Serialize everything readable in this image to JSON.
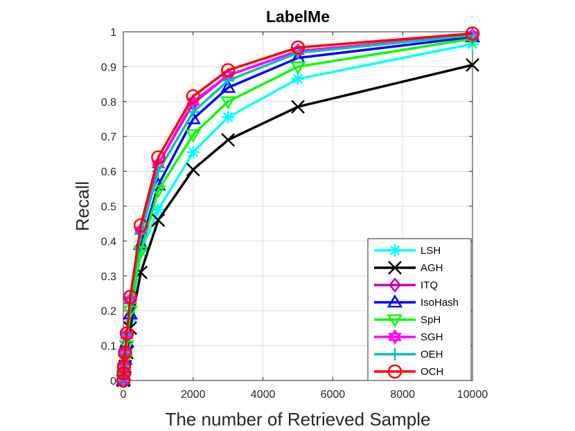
{
  "chart_data": {
    "type": "line",
    "title": "LabelMe",
    "xlabel": "The number of Retrieved Sample",
    "ylabel": "Recall",
    "xlim": [
      0,
      10000
    ],
    "ylim": [
      0,
      1
    ],
    "xticks": [
      0,
      2000,
      4000,
      6000,
      8000,
      10000
    ],
    "xtick_labels": [
      "0",
      "2000",
      "4000",
      "6000",
      "8000",
      "10000"
    ],
    "yticks": [
      0,
      0.1,
      0.2,
      0.3,
      0.4,
      0.5,
      0.6,
      0.7,
      0.8,
      0.9,
      1
    ],
    "ytick_labels": [
      "0",
      "0.1",
      "0.2",
      "0.3",
      "0.4",
      "0.5",
      "0.6",
      "0.7",
      "0.8",
      "0.9",
      "1"
    ],
    "grid": true,
    "legend_position": "bottom-right",
    "x": [
      1,
      10,
      20,
      50,
      100,
      200,
      500,
      1000,
      2000,
      3000,
      5000,
      10000
    ],
    "series": [
      {
        "name": "LSH",
        "color": "#00ffff",
        "marker": "asterisk",
        "values": [
          0.0,
          0.01,
          0.02,
          0.05,
          0.09,
          0.17,
          0.37,
          0.49,
          0.655,
          0.755,
          0.865,
          0.965
        ]
      },
      {
        "name": "AGH",
        "color": "#000000",
        "marker": "x",
        "values": [
          0.0,
          0.01,
          0.02,
          0.04,
          0.08,
          0.15,
          0.31,
          0.46,
          0.605,
          0.69,
          0.785,
          0.905
        ]
      },
      {
        "name": "ITQ",
        "color": "#bf00bf",
        "marker": "diamond",
        "values": [
          0.0,
          0.02,
          0.04,
          0.08,
          0.13,
          0.23,
          0.43,
          0.62,
          0.795,
          0.875,
          0.945,
          0.99
        ]
      },
      {
        "name": "IsoHash",
        "color": "#0000ff",
        "marker": "triangle-up",
        "values": [
          0.0,
          0.015,
          0.03,
          0.06,
          0.11,
          0.19,
          0.39,
          0.56,
          0.75,
          0.84,
          0.925,
          0.985
        ]
      },
      {
        "name": "SpH",
        "color": "#00ff00",
        "marker": "triangle-down",
        "values": [
          0.0,
          0.015,
          0.03,
          0.06,
          0.1,
          0.2,
          0.37,
          0.545,
          0.705,
          0.8,
          0.9,
          0.98
        ]
      },
      {
        "name": "SGH",
        "color": "#ff00ff",
        "marker": "hexagram",
        "values": [
          0.0,
          0.02,
          0.04,
          0.08,
          0.13,
          0.23,
          0.43,
          0.62,
          0.8,
          0.875,
          0.945,
          0.99
        ]
      },
      {
        "name": "OEH",
        "color": "#00bfbf",
        "marker": "plus",
        "values": [
          0.0,
          0.02,
          0.04,
          0.08,
          0.13,
          0.225,
          0.42,
          0.6,
          0.77,
          0.86,
          0.94,
          0.99
        ]
      },
      {
        "name": "OCH",
        "color": "#ff0000",
        "marker": "circle",
        "values": [
          0.0,
          0.02,
          0.04,
          0.08,
          0.135,
          0.24,
          0.445,
          0.64,
          0.815,
          0.89,
          0.955,
          0.995
        ]
      }
    ]
  }
}
